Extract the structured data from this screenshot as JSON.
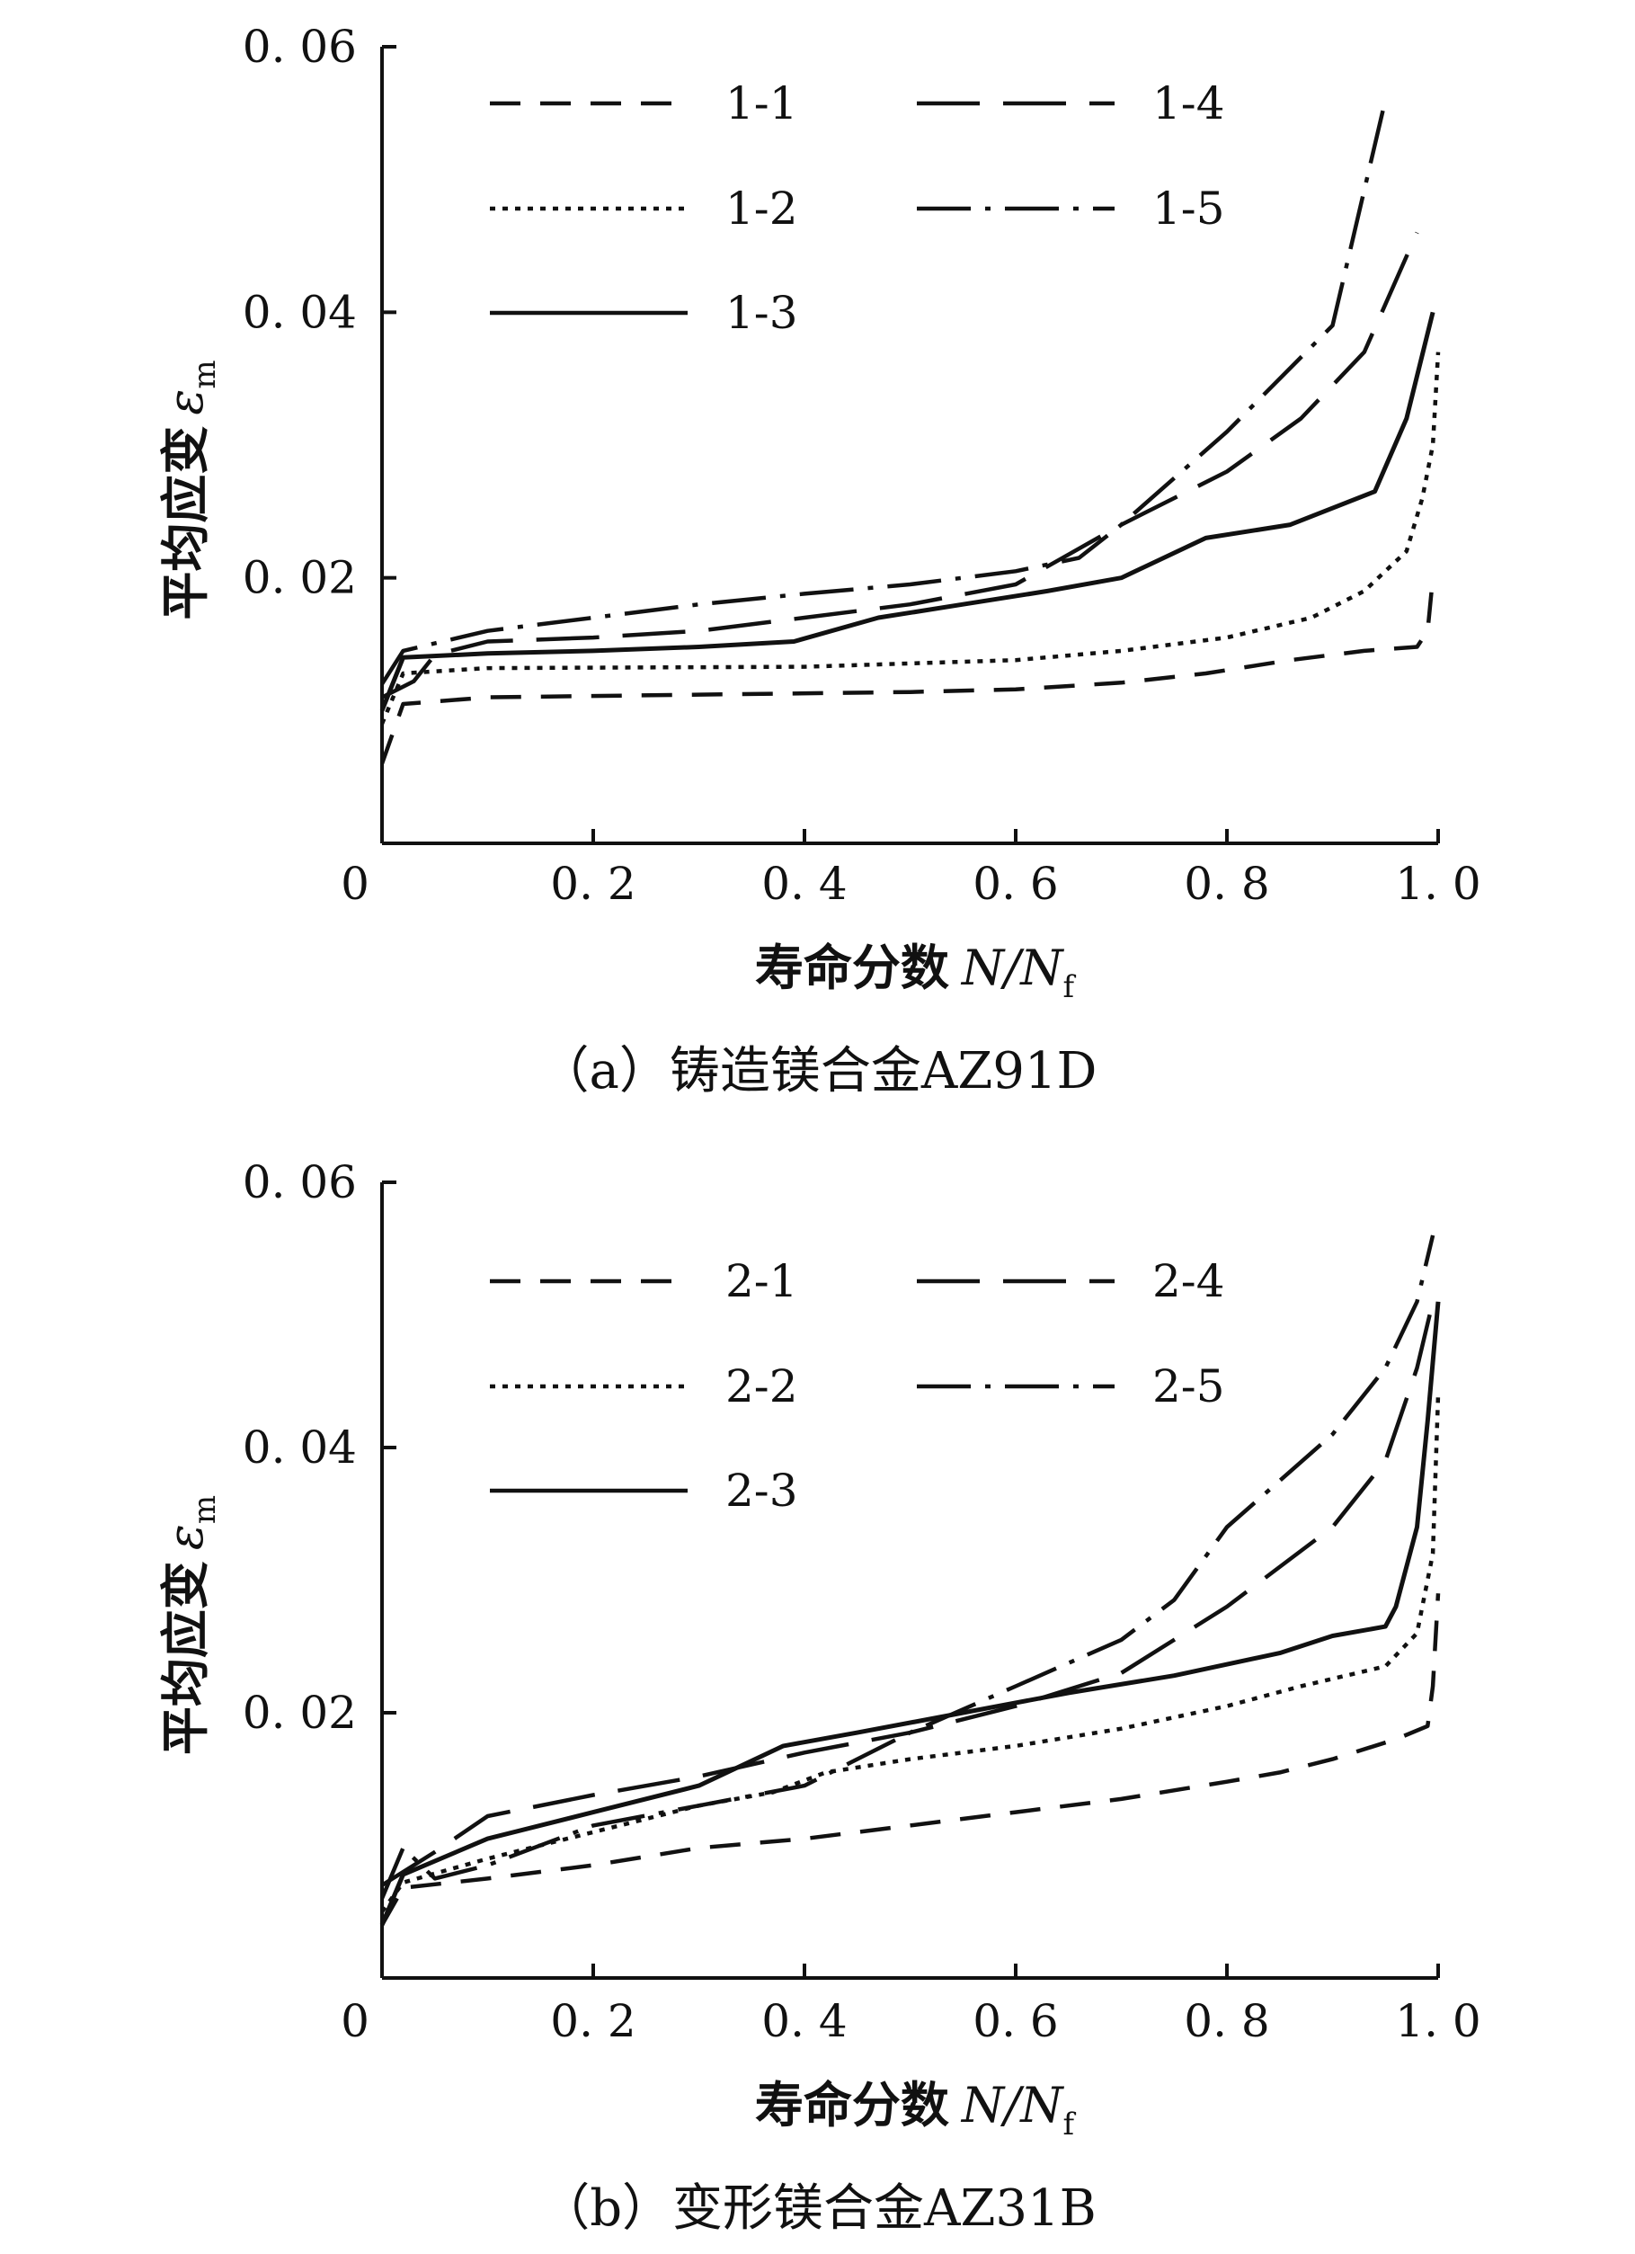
{
  "chart_data": [
    {
      "type": "line",
      "caption": "（a）铸造镁合金AZ91D",
      "ylabel": "平均应变",
      "ylabel_symbol": "ε",
      "ylabel_subscript": "m",
      "xlabel": "寿命分数",
      "xlabel_symbol": "N/N",
      "xlabel_subscript": "f",
      "xlim": [
        0,
        1.0
      ],
      "ylim": [
        0,
        0.06
      ],
      "xticks": [
        0,
        0.2,
        0.4,
        0.6,
        0.8,
        1.0
      ],
      "xtick_labels": [
        "0",
        "0. 2",
        "0. 4",
        "0. 6",
        "0. 8",
        "1. 0"
      ],
      "yticks": [
        0.02,
        0.04,
        0.06
      ],
      "ytick_labels": [
        "0. 02",
        "0. 04",
        "0. 06"
      ],
      "legend_position": "top-left",
      "grid": false,
      "series": [
        {
          "name": "1-1",
          "style": "dash",
          "points": [
            [
              0,
              0.006
            ],
            [
              0.02,
              0.0105
            ],
            [
              0.1,
              0.011
            ],
            [
              0.3,
              0.0112
            ],
            [
              0.5,
              0.0114
            ],
            [
              0.6,
              0.0116
            ],
            [
              0.7,
              0.0121
            ],
            [
              0.78,
              0.0128
            ],
            [
              0.86,
              0.0138
            ],
            [
              0.93,
              0.0145
            ],
            [
              0.98,
              0.0148
            ],
            [
              0.99,
              0.016
            ],
            [
              0.995,
              0.02
            ]
          ]
        },
        {
          "name": "1-2",
          "style": "dot",
          "points": [
            [
              0,
              0.009
            ],
            [
              0.02,
              0.0128
            ],
            [
              0.1,
              0.0132
            ],
            [
              0.4,
              0.0133
            ],
            [
              0.6,
              0.0138
            ],
            [
              0.7,
              0.0145
            ],
            [
              0.8,
              0.0155
            ],
            [
              0.88,
              0.017
            ],
            [
              0.93,
              0.019
            ],
            [
              0.97,
              0.022
            ],
            [
              0.985,
              0.026
            ],
            [
              0.995,
              0.03
            ],
            [
              1.0,
              0.037
            ]
          ]
        },
        {
          "name": "1-3",
          "style": "solid",
          "points": [
            [
              0,
              0.01
            ],
            [
              0.02,
              0.014
            ],
            [
              0.1,
              0.0143
            ],
            [
              0.2,
              0.0145
            ],
            [
              0.3,
              0.0148
            ],
            [
              0.39,
              0.0152
            ],
            [
              0.47,
              0.017
            ],
            [
              0.55,
              0.018
            ],
            [
              0.63,
              0.019
            ],
            [
              0.7,
              0.02
            ],
            [
              0.78,
              0.023
            ],
            [
              0.86,
              0.024
            ],
            [
              0.94,
              0.0265
            ],
            [
              0.97,
              0.032
            ],
            [
              0.995,
              0.04
            ]
          ]
        },
        {
          "name": "1-4",
          "style": "longdash",
          "points": [
            [
              0,
              0.011
            ],
            [
              0.03,
              0.0122
            ],
            [
              0.05,
              0.0142
            ],
            [
              0.1,
              0.0152
            ],
            [
              0.2,
              0.0155
            ],
            [
              0.3,
              0.016
            ],
            [
              0.4,
              0.017
            ],
            [
              0.5,
              0.018
            ],
            [
              0.6,
              0.0195
            ],
            [
              0.7,
              0.024
            ],
            [
              0.8,
              0.028
            ],
            [
              0.87,
              0.032
            ],
            [
              0.93,
              0.037
            ],
            [
              0.98,
              0.046
            ]
          ]
        },
        {
          "name": "1-5",
          "style": "dashdot",
          "points": [
            [
              0,
              0.012
            ],
            [
              0.02,
              0.0145
            ],
            [
              0.1,
              0.016
            ],
            [
              0.2,
              0.017
            ],
            [
              0.3,
              0.018
            ],
            [
              0.4,
              0.0188
            ],
            [
              0.5,
              0.0195
            ],
            [
              0.6,
              0.0205
            ],
            [
              0.66,
              0.0215
            ],
            [
              0.7,
              0.024
            ],
            [
              0.8,
              0.031
            ],
            [
              0.9,
              0.039
            ],
            [
              0.95,
              0.056
            ]
          ]
        }
      ]
    },
    {
      "type": "line",
      "caption": "（b）变形镁合金AZ31B",
      "ylabel": "平均应变",
      "ylabel_symbol": "ε",
      "ylabel_subscript": "m",
      "xlabel": "寿命分数",
      "xlabel_symbol": "N/N",
      "xlabel_subscript": "f",
      "xlim": [
        0,
        1.0
      ],
      "ylim": [
        0,
        0.06
      ],
      "xticks": [
        0,
        0.2,
        0.4,
        0.6,
        0.8,
        1.0
      ],
      "xtick_labels": [
        "0",
        "0. 2",
        "0. 4",
        "0. 6",
        "0. 8",
        "1. 0"
      ],
      "yticks": [
        0.02,
        0.04,
        0.06
      ],
      "ytick_labels": [
        "0. 02",
        "0. 04",
        "0. 06"
      ],
      "legend_position": "top-left",
      "grid": false,
      "series": [
        {
          "name": "2-1",
          "style": "dash",
          "points": [
            [
              0,
              0.004
            ],
            [
              0.02,
              0.0068
            ],
            [
              0.1,
              0.0075
            ],
            [
              0.2,
              0.0085
            ],
            [
              0.3,
              0.0098
            ],
            [
              0.4,
              0.0105
            ],
            [
              0.5,
              0.0115
            ],
            [
              0.6,
              0.0125
            ],
            [
              0.7,
              0.0135
            ],
            [
              0.8,
              0.0148
            ],
            [
              0.85,
              0.0155
            ],
            [
              0.9,
              0.0165
            ],
            [
              0.96,
              0.018
            ],
            [
              0.99,
              0.019
            ],
            [
              0.995,
              0.022
            ],
            [
              1.0,
              0.029
            ]
          ]
        },
        {
          "name": "2-2",
          "style": "dot",
          "points": [
            [
              0,
              0.005
            ],
            [
              0.02,
              0.0072
            ],
            [
              0.1,
              0.009
            ],
            [
              0.2,
              0.011
            ],
            [
              0.3,
              0.013
            ],
            [
              0.37,
              0.014
            ],
            [
              0.42,
              0.0155
            ],
            [
              0.5,
              0.0165
            ],
            [
              0.6,
              0.0175
            ],
            [
              0.7,
              0.0188
            ],
            [
              0.8,
              0.0205
            ],
            [
              0.87,
              0.022
            ],
            [
              0.95,
              0.0235
            ],
            [
              0.98,
              0.026
            ],
            [
              0.995,
              0.032
            ],
            [
              1.0,
              0.044
            ]
          ]
        },
        {
          "name": "2-3",
          "style": "solid",
          "points": [
            [
              0,
              0.004
            ],
            [
              0.02,
              0.0078
            ],
            [
              0.1,
              0.0105
            ],
            [
              0.2,
              0.0125
            ],
            [
              0.3,
              0.0145
            ],
            [
              0.38,
              0.0175
            ],
            [
              0.45,
              0.0185
            ],
            [
              0.55,
              0.02
            ],
            [
              0.65,
              0.0215
            ],
            [
              0.75,
              0.0228
            ],
            [
              0.85,
              0.0245
            ],
            [
              0.9,
              0.0258
            ],
            [
              0.95,
              0.0265
            ],
            [
              0.96,
              0.028
            ],
            [
              0.98,
              0.034
            ],
            [
              0.99,
              0.042
            ],
            [
              1.0,
              0.051
            ]
          ]
        },
        {
          "name": "2-4",
          "style": "longdash",
          "points": [
            [
              0,
              0.007
            ],
            [
              0.05,
              0.0095
            ],
            [
              0.1,
              0.0122
            ],
            [
              0.2,
              0.0138
            ],
            [
              0.3,
              0.0152
            ],
            [
              0.4,
              0.017
            ],
            [
              0.5,
              0.0185
            ],
            [
              0.6,
              0.0205
            ],
            [
              0.7,
              0.023
            ],
            [
              0.8,
              0.028
            ],
            [
              0.9,
              0.034
            ],
            [
              0.95,
              0.039
            ],
            [
              0.98,
              0.046
            ],
            [
              0.995,
              0.051
            ]
          ]
        },
        {
          "name": "2-5",
          "style": "dashdot",
          "points": [
            [
              0,
              0.006
            ],
            [
              0.02,
              0.0098
            ],
            [
              0.05,
              0.0075
            ],
            [
              0.1,
              0.0085
            ],
            [
              0.2,
              0.0115
            ],
            [
              0.3,
              0.013
            ],
            [
              0.4,
              0.0145
            ],
            [
              0.5,
              0.0185
            ],
            [
              0.6,
              0.022
            ],
            [
              0.7,
              0.0255
            ],
            [
              0.75,
              0.0285
            ],
            [
              0.8,
              0.034
            ],
            [
              0.9,
              0.041
            ],
            [
              0.95,
              0.046
            ],
            [
              0.98,
              0.051
            ],
            [
              0.995,
              0.056
            ]
          ]
        }
      ]
    }
  ]
}
